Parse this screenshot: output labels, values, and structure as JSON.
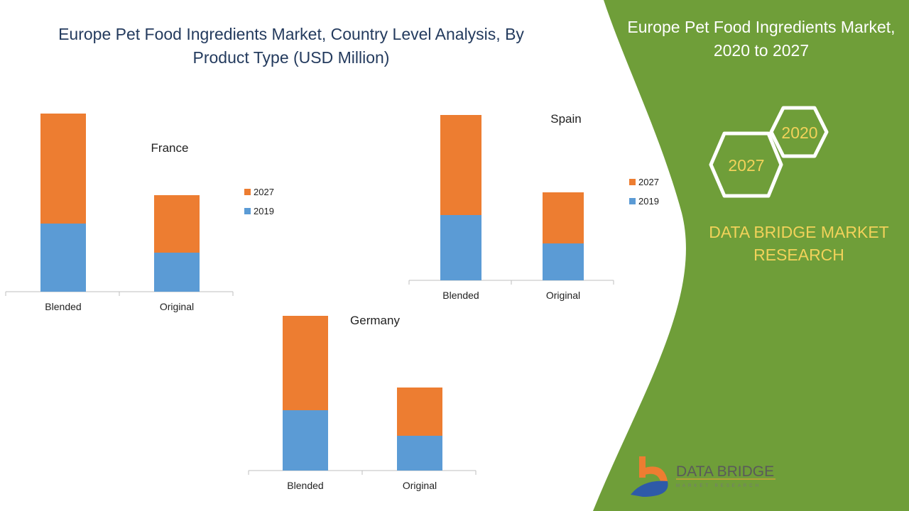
{
  "title": "Europe Pet Food Ingredients Market, Country Level Analysis, By Product Type (USD Million)",
  "side_panel": {
    "title": "Europe Pet Food Ingredients Market, 2020 to 2027",
    "hex_2020": "2020",
    "hex_2027": "2027",
    "brand": "DATA BRIDGE MARKET RESEARCH",
    "logo_text": "DATA BRIDGE",
    "logo_sub": "MARKET RESEARCH"
  },
  "colors": {
    "s2019": "#5b9bd5",
    "s2027": "#ed7d31",
    "green": "#6f9e39",
    "gold": "#f2d25a"
  },
  "chart_data": [
    {
      "type": "bar",
      "stacked": true,
      "title": "France",
      "categories": [
        "Blended",
        "Original"
      ],
      "series": [
        {
          "name": "2019",
          "values": [
            96,
            55
          ]
        },
        {
          "name": "2027",
          "values": [
            155,
            81
          ]
        }
      ],
      "legend": [
        "2027",
        "2019"
      ],
      "ylim": [
        0,
        260
      ],
      "legend_placement": "right",
      "note": "values relative, no axis shown"
    },
    {
      "type": "bar",
      "stacked": true,
      "title": "Spain",
      "categories": [
        "Blended",
        "Original"
      ],
      "series": [
        {
          "name": "2019",
          "values": [
            92,
            52
          ]
        },
        {
          "name": "2027",
          "values": [
            141,
            72
          ]
        }
      ],
      "legend": [
        "2027",
        "2019"
      ],
      "ylim": [
        0,
        260
      ],
      "legend_placement": "right"
    },
    {
      "type": "bar",
      "stacked": true,
      "title": "Germany",
      "categories": [
        "Blended",
        "Original"
      ],
      "series": [
        {
          "name": "2019",
          "values": [
            85,
            49
          ]
        },
        {
          "name": "2027",
          "values": [
            133,
            68
          ]
        }
      ],
      "legend": [
        "2027",
        "2019"
      ],
      "ylim": [
        0,
        260
      ],
      "legend_placement": "none"
    }
  ]
}
